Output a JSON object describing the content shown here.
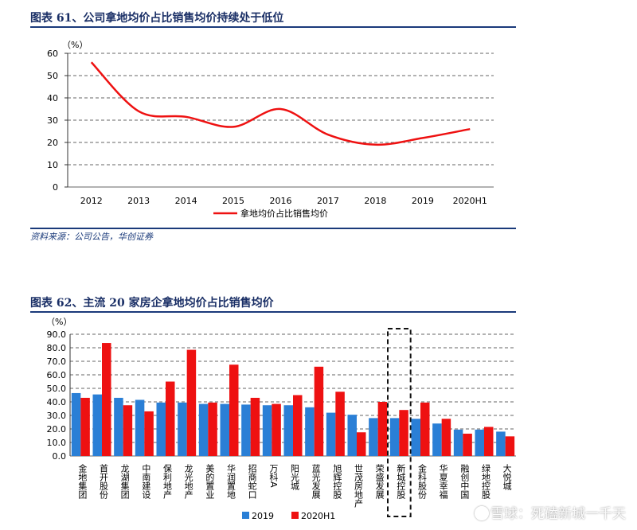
{
  "figure1": {
    "title": "图表 61、公司拿地均价占比销售均价持续处于低位",
    "source": "资料来源：公司公告，华创证券"
  },
  "figure2": {
    "title": "图表 62、主流 20 家房企拿地均价占比销售均价"
  },
  "watermark": "雪球：死磕新城一千天",
  "colors": {
    "line_red": "#ee1111",
    "bar_blue": "#2a7fd6",
    "bar_red": "#ee1111",
    "grid": "#333333",
    "rule": "#1a3a7a"
  },
  "chart_data": [
    {
      "type": "line",
      "unit_label": "（%）",
      "categories": [
        "2012",
        "2013",
        "2014",
        "2015",
        "2016",
        "2017",
        "2018",
        "2019",
        "2020H1"
      ],
      "series": [
        {
          "name": "拿地均价占比销售均价",
          "values": [
            56,
            34,
            31.5,
            27,
            35,
            23.5,
            19,
            22,
            26
          ]
        }
      ],
      "ylim": [
        0,
        60
      ],
      "yticks": [
        0,
        10,
        20,
        30,
        40,
        50,
        60
      ],
      "grid": true,
      "legend": "bottom"
    },
    {
      "type": "bar",
      "unit_label": "（%）",
      "categories": [
        "金地集团",
        "首开股份",
        "龙湖集团",
        "中南建设",
        "保利地产",
        "龙光地产",
        "美的置业",
        "华润置地",
        "招商蛇口",
        "万科A",
        "阳光城",
        "蓝光发展",
        "旭辉控股",
        "世茂房地产",
        "荣盛发展",
        "新城控股",
        "金科股份",
        "华夏幸福",
        "融创中国",
        "绿地控股",
        "大悦城"
      ],
      "series": [
        {
          "name": "2019",
          "values": [
            46.5,
            45.5,
            43,
            41.5,
            39.5,
            39.5,
            38.5,
            38.5,
            38,
            37.5,
            37.5,
            36,
            32,
            30.5,
            28,
            28,
            27.5,
            24,
            19.5,
            19.5,
            18
          ]
        },
        {
          "name": "2020H1",
          "values": [
            43,
            83.5,
            37.5,
            33,
            55,
            78.5,
            39.5,
            67.5,
            43,
            38.5,
            45,
            66,
            47.5,
            17.5,
            40,
            34,
            39.5,
            27.5,
            16.5,
            21.5,
            14.5
          ]
        }
      ],
      "ylim": [
        0,
        90
      ],
      "yticks": [
        "0.0",
        "10.0",
        "20.0",
        "30.0",
        "40.0",
        "50.0",
        "60.0",
        "70.0",
        "80.0",
        "90.0"
      ],
      "highlight_category": "新城控股",
      "grid": true,
      "legend": "bottom-left"
    }
  ]
}
